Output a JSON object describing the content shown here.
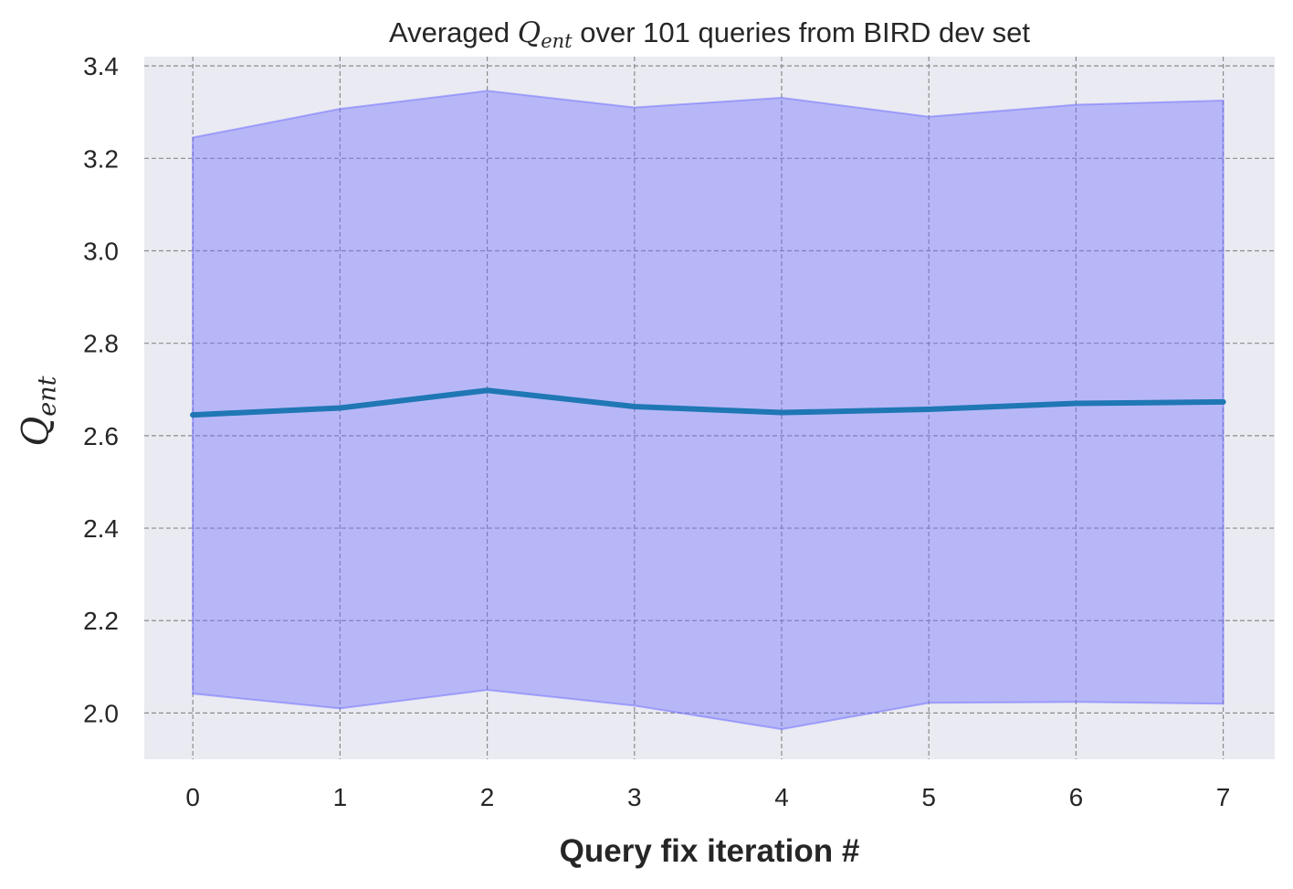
{
  "chart_data": {
    "type": "line",
    "title": {
      "prefix": "Averaged ",
      "math_base": "Q",
      "math_sub": "ent",
      "suffix": " over 101 queries from BIRD dev set"
    },
    "xlabel": "Query fix iteration #",
    "ylabel": {
      "math_base": "Q",
      "math_sub": "ent"
    },
    "x": [
      0,
      1,
      2,
      3,
      4,
      5,
      6,
      7
    ],
    "x_ticks": [
      "0",
      "1",
      "2",
      "3",
      "4",
      "5",
      "6",
      "7"
    ],
    "y_ticks": [
      "2.0",
      "2.2",
      "2.4",
      "2.6",
      "2.8",
      "3.0",
      "3.2",
      "3.4"
    ],
    "y_tick_values": [
      2.0,
      2.2,
      2.4,
      2.6,
      2.8,
      3.0,
      3.2,
      3.4
    ],
    "xlim": [
      -0.33,
      7.35
    ],
    "ylim": [
      1.9,
      3.42
    ],
    "grid": true,
    "series": [
      {
        "values": [
          2.645,
          2.66,
          2.698,
          2.663,
          2.65,
          2.657,
          2.67,
          2.673
        ],
        "color": "#1f77b4",
        "band_upper": [
          3.245,
          3.307,
          3.346,
          3.31,
          3.331,
          3.29,
          3.316,
          3.325
        ],
        "band_lower": [
          2.042,
          2.01,
          2.05,
          2.016,
          1.965,
          2.022,
          2.024,
          2.02
        ],
        "band_color": "#6b6bff"
      }
    ],
    "background_color": "#eaeaf2"
  }
}
